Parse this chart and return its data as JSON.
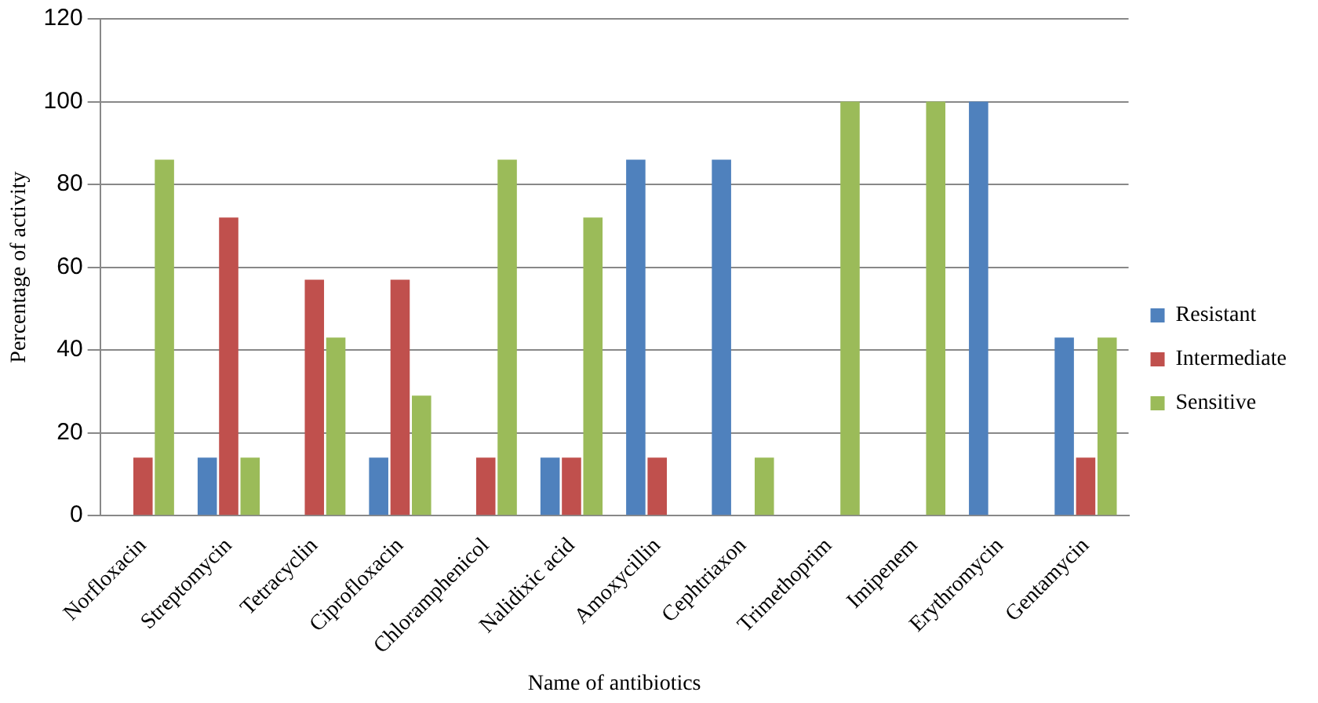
{
  "chart_data": {
    "type": "bar",
    "xlabel": "Name of antibiotics",
    "ylabel": "Percentage of activity",
    "categories": [
      "Norfloxacin",
      "Streptomycin",
      "Tetracyclin",
      "Ciprofloxacin",
      "Chloramphenicol",
      "Nalidixic acid",
      "Amoxycillin",
      "Cephtriaxon",
      "Trimethoprim",
      "Imipenem",
      "Erythromycin",
      "Gentamycin"
    ],
    "series": [
      {
        "name": "Resistant",
        "color": "#4f81bd",
        "values": [
          0,
          14,
          0,
          14,
          0,
          14,
          86,
          86,
          0,
          0,
          100,
          43
        ]
      },
      {
        "name": "Intermediate",
        "color": "#c0504d",
        "values": [
          14,
          72,
          57,
          57,
          14,
          14,
          14,
          0,
          0,
          0,
          0,
          14
        ]
      },
      {
        "name": "Sensitive",
        "color": "#9bbb59",
        "values": [
          86,
          14,
          43,
          29,
          86,
          72,
          0,
          14,
          100,
          100,
          0,
          43
        ]
      }
    ],
    "ylim": [
      0,
      120
    ],
    "yticks": [
      0,
      20,
      40,
      60,
      80,
      100,
      120
    ],
    "grid": "y",
    "legend": "right"
  }
}
